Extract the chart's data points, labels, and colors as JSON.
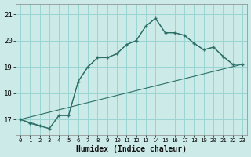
{
  "xlabel": "Humidex (Indice chaleur)",
  "bg_color": "#cceae8",
  "grid_color": "#99d5d2",
  "line_color": "#2d7068",
  "xlim": [
    -0.5,
    23.5
  ],
  "ylim": [
    16.4,
    21.4
  ],
  "yticks": [
    17,
    18,
    19,
    20,
    21
  ],
  "xticks": [
    0,
    1,
    2,
    3,
    4,
    5,
    6,
    7,
    8,
    9,
    10,
    11,
    12,
    13,
    14,
    15,
    16,
    17,
    18,
    19,
    20,
    21,
    22,
    23
  ],
  "curve1_x": [
    0,
    1,
    2,
    3,
    4,
    5,
    6,
    7,
    8,
    9,
    10,
    11,
    12,
    13,
    14,
    15,
    16,
    17,
    18,
    19,
    20,
    21,
    22,
    23
  ],
  "curve1_y": [
    17.0,
    16.85,
    16.75,
    16.65,
    17.15,
    17.15,
    18.45,
    19.0,
    19.35,
    19.35,
    19.5,
    19.85,
    20.0,
    20.55,
    20.85,
    20.3,
    20.3,
    20.2,
    19.9,
    19.65,
    19.75,
    19.4,
    19.1,
    19.1
  ],
  "curve2_x": [
    0,
    3,
    4,
    5,
    6,
    7,
    8,
    9,
    10,
    11,
    12,
    13,
    14,
    15,
    16,
    17,
    18,
    19,
    20,
    21,
    22,
    23
  ],
  "curve2_y": [
    17.0,
    16.65,
    17.15,
    17.15,
    18.45,
    19.0,
    19.35,
    19.35,
    19.5,
    19.85,
    20.0,
    20.55,
    20.85,
    20.3,
    20.3,
    20.2,
    19.9,
    19.65,
    19.75,
    19.4,
    19.1,
    19.1
  ],
  "curve3_x": [
    0,
    23
  ],
  "curve3_y": [
    17.0,
    19.1
  ]
}
